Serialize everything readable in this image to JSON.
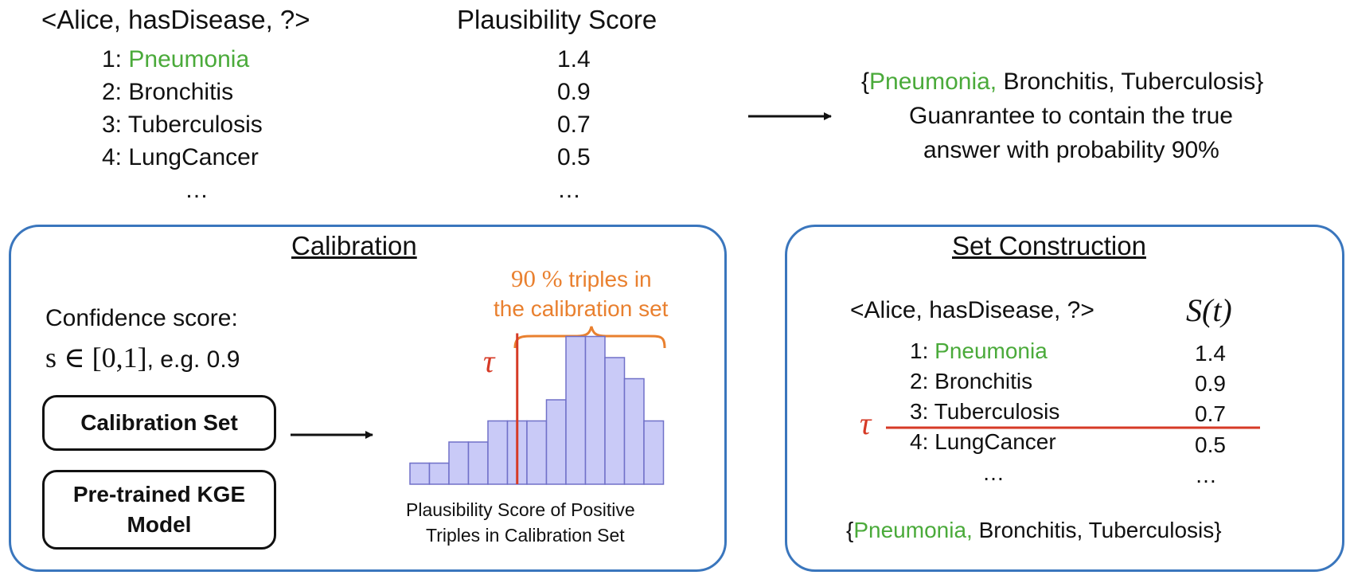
{
  "top": {
    "query": "<Alice, hasDisease, ?>",
    "score_header": "Plausibility Score",
    "candidates": [
      {
        "rank": "1:",
        "name": "Pneumonia",
        "score": "1.4",
        "highlight": true
      },
      {
        "rank": "2:",
        "name": "Bronchitis",
        "score": "0.9",
        "highlight": false
      },
      {
        "rank": "3:",
        "name": "Tuberculosis",
        "score": "0.7",
        "highlight": false
      },
      {
        "rank": "4:",
        "name": "LungCancer",
        "score": "0.5",
        "highlight": false
      }
    ],
    "ellipsis_left": "…",
    "ellipsis_right": "…"
  },
  "result": {
    "open_brace": "{",
    "green_item": "Pneumonia,",
    "rest_items": " Bronchitis, Tuberculosis}",
    "line2": "Guanrantee to contain the true",
    "line3": "answer with probability 90%"
  },
  "calibration": {
    "title": "Calibration",
    "confidence_label": "Confidence score:",
    "confidence_math": "s ∈ [0,1]",
    "confidence_example": ", e.g. 0.9",
    "calib_set_label": "Calibration Set",
    "model_line1": "Pre-trained KGE",
    "model_line2": "Model",
    "brace_pct": "90 %",
    "brace_line1_rest": " triples in",
    "brace_line2": "the calibration set",
    "tau": "τ",
    "caption_line1": "Plausibility Score of Positive",
    "caption_line2": "Triples in Calibration Set"
  },
  "chart_data": {
    "type": "bar",
    "title": "",
    "xlabel": "Plausibility Score of Positive Triples in Calibration Set",
    "ylabel": "",
    "values": [
      1,
      1,
      2,
      2,
      3,
      3,
      3,
      4,
      7,
      7,
      6,
      5,
      3
    ],
    "threshold_bin": 5,
    "bar_color": "#c9caf7",
    "bar_edge": "#7070c8",
    "threshold_color": "#d63a26"
  },
  "set_construction": {
    "title": "Set Construction",
    "query": "<Alice, hasDisease, ?>",
    "score_header": "S(t)",
    "candidates": [
      {
        "rank": "1:",
        "name": "Pneumonia",
        "score": "1.4",
        "highlight": true
      },
      {
        "rank": "2:",
        "name": "Bronchitis",
        "score": "0.9",
        "highlight": false
      },
      {
        "rank": "3:",
        "name": "Tuberculosis",
        "score": "0.7",
        "highlight": false
      },
      {
        "rank": "4:",
        "name": "LungCancer",
        "score": "0.5",
        "highlight": false
      }
    ],
    "ellipsis_left": "…",
    "ellipsis_right": "…",
    "tau": "τ",
    "result_open": "{",
    "result_green": "Pneumonia,",
    "result_rest": " Bronchitis, Tuberculosis}"
  }
}
